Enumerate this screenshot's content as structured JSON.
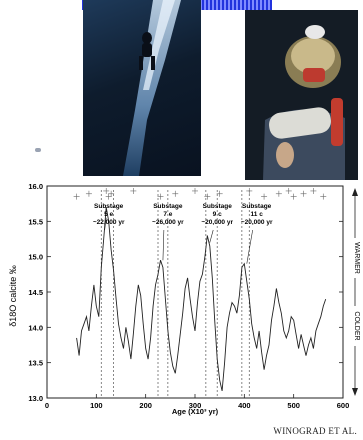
{
  "credit": "WINOGRAD ET AL.",
  "photos": [
    {
      "name": "cave-diver-descending-shaft"
    },
    {
      "name": "diver-with-core-sample"
    }
  ],
  "chart_data": {
    "type": "line",
    "ylabel": "δ18O calcite ‰",
    "xlabel": "Age (X10³ yr)",
    "xlim": [
      0,
      600
    ],
    "ylim": [
      13.0,
      16.0
    ],
    "xticks": [
      0,
      100,
      200,
      300,
      400,
      500,
      600
    ],
    "yticks": [
      13.0,
      13.5,
      14.0,
      14.5,
      15.0,
      15.5,
      16.0
    ],
    "right_axis": {
      "top": "WARMER",
      "bottom": "COLDER"
    },
    "annotations": [
      {
        "lines": [
          "Substage",
          "5 e",
          "~22,000 yr"
        ],
        "x": 125,
        "arrow_to": [
          120,
          15.55
        ]
      },
      {
        "lines": [
          "Substage",
          "7 e",
          "~26,000 yr"
        ],
        "x": 245,
        "arrow_to": [
          235,
          14.95
        ]
      },
      {
        "lines": [
          "Substage",
          "9 c",
          "~20,000 yr"
        ],
        "x": 345,
        "arrow_to": [
          330,
          15.2
        ]
      },
      {
        "lines": [
          "Substage",
          "11 c",
          "~20,000 yr"
        ],
        "x": 425,
        "arrow_to": [
          405,
          14.9
        ]
      }
    ],
    "dashed_lines_x": [
      110,
      135,
      225,
      245,
      322,
      345,
      395,
      410
    ],
    "series": [
      {
        "x": [
          60,
          65,
          70,
          75,
          80,
          85,
          90,
          95,
          100,
          105,
          110,
          115,
          120,
          125,
          130,
          135,
          140,
          145,
          150,
          155,
          160,
          165,
          170,
          175,
          180,
          185,
          190,
          195,
          200,
          205,
          210,
          215,
          220,
          225,
          230,
          235,
          240,
          245,
          250,
          255,
          260,
          265,
          270,
          275,
          280,
          285,
          290,
          295,
          300,
          305,
          310,
          315,
          320,
          325,
          330,
          335,
          340,
          345,
          350,
          355,
          360,
          365,
          370,
          375,
          380,
          385,
          390,
          395,
          400,
          405,
          410,
          415,
          420,
          425,
          430,
          435,
          440,
          445,
          450,
          455,
          460,
          465,
          470,
          475,
          480,
          485,
          490,
          495,
          500,
          505,
          510,
          515,
          520,
          525,
          530,
          535,
          540,
          545,
          550,
          555,
          560,
          565
        ],
        "y": [
          13.85,
          13.6,
          13.95,
          14.05,
          14.15,
          13.95,
          14.3,
          14.6,
          14.3,
          14.15,
          14.85,
          15.25,
          15.7,
          15.5,
          15.1,
          14.8,
          14.4,
          14.05,
          13.85,
          13.7,
          14.0,
          13.8,
          13.55,
          13.9,
          14.3,
          14.6,
          14.45,
          14.05,
          13.7,
          13.55,
          13.85,
          14.3,
          14.6,
          14.75,
          14.95,
          14.85,
          14.4,
          13.95,
          13.65,
          13.45,
          13.35,
          13.6,
          13.9,
          14.2,
          14.55,
          14.7,
          14.4,
          14.15,
          13.95,
          14.35,
          14.65,
          14.75,
          15.0,
          15.3,
          15.15,
          14.7,
          14.1,
          13.55,
          13.25,
          13.1,
          13.5,
          14.0,
          14.2,
          14.35,
          14.3,
          14.2,
          14.45,
          14.85,
          14.9,
          14.65,
          14.4,
          14.05,
          13.85,
          13.7,
          13.95,
          13.65,
          13.4,
          13.6,
          13.75,
          14.1,
          14.3,
          14.55,
          14.35,
          14.2,
          13.95,
          13.85,
          13.95,
          14.15,
          14.1,
          13.9,
          13.7,
          13.9,
          13.75,
          13.6,
          13.75,
          13.85,
          13.7,
          13.95,
          14.05,
          14.15,
          14.3,
          14.4
        ]
      }
    ]
  }
}
